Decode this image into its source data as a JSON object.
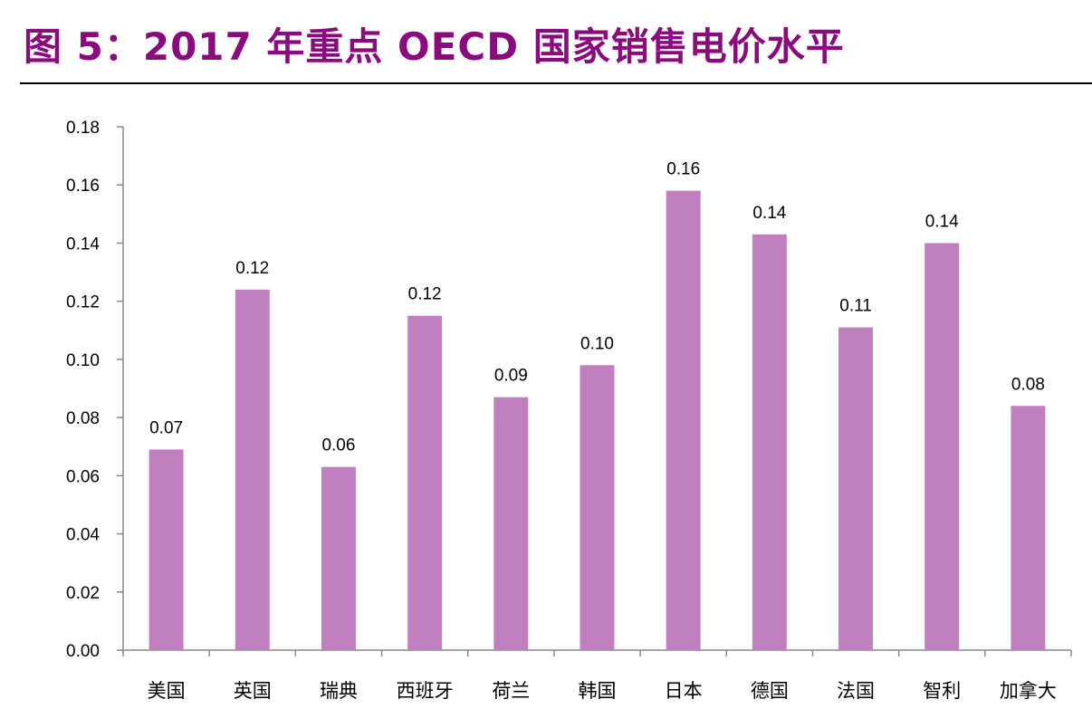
{
  "title": "图 5：2017 年重点 OECD 国家销售电价水平",
  "chart_data": {
    "type": "bar",
    "title": "",
    "xlabel": "",
    "ylabel": "",
    "ylim": [
      0,
      0.18
    ],
    "yticks": [
      "0.00",
      "0.02",
      "0.04",
      "0.06",
      "0.08",
      "0.10",
      "0.12",
      "0.14",
      "0.16",
      "0.18"
    ],
    "categories": [
      "美国",
      "英国",
      "瑞典",
      "西班牙",
      "荷兰",
      "韩国",
      "日本",
      "德国",
      "法国",
      "智利",
      "加拿大"
    ],
    "values": [
      0.069,
      0.124,
      0.063,
      0.115,
      0.087,
      0.098,
      0.158,
      0.143,
      0.111,
      0.14,
      0.084
    ],
    "data_labels": [
      "0.07",
      "0.12",
      "0.06",
      "0.12",
      "0.09",
      "0.10",
      "0.16",
      "0.14",
      "0.11",
      "0.14",
      "0.08"
    ],
    "grid": false,
    "legend": "none",
    "bar_color": "#C080C0",
    "title_color": "#8B0A7E"
  }
}
